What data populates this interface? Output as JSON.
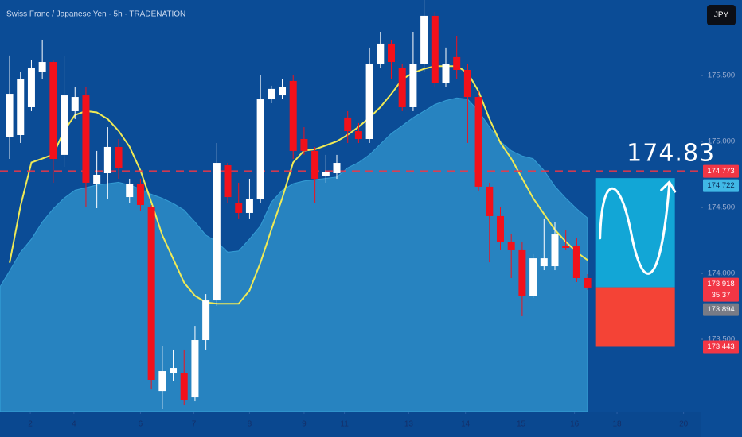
{
  "title": "Swiss Franc / Japanese Yen · 5h · TRADENATION",
  "currency_button": "JPY",
  "chart_data": {
    "type": "candlestick",
    "x": [
      0,
      1,
      2,
      3,
      4,
      5,
      6,
      7,
      8,
      9,
      10,
      11,
      12,
      13,
      14,
      15,
      16,
      17,
      18,
      19,
      20,
      21,
      22,
      23,
      24,
      25,
      26,
      27,
      28,
      29,
      30,
      31,
      32,
      33,
      34,
      35,
      36,
      37,
      38,
      39,
      40,
      41,
      42,
      43,
      44,
      45,
      46,
      47,
      48,
      49,
      50,
      51,
      52,
      53
    ],
    "open": [
      175.036,
      175.048,
      175.259,
      175.53,
      175.602,
      174.898,
      175.229,
      175.349,
      174.675,
      174.759,
      174.958,
      174.578,
      174.675,
      174.506,
      173.108,
      173.241,
      173.241,
      173.06,
      173.494,
      173.795,
      174.819,
      174.536,
      174.458,
      174.566,
      175.319,
      175.349,
      175.458,
      175.018,
      174.928,
      174.735,
      174.759,
      175.181,
      175.078,
      175.018,
      175.59,
      175.741,
      175.56,
      175.259,
      175.59,
      175.952,
      175.44,
      175.639,
      175.542,
      175.337,
      174.657,
      174.434,
      174.235,
      174.175,
      173.831,
      174.054,
      174.054,
      174.205,
      174.205,
      173.964
    ],
    "high": [
      175.651,
      175.53,
      175.62,
      175.771,
      175.62,
      175.651,
      175.41,
      175.41,
      174.928,
      175.108,
      175.018,
      174.717,
      174.717,
      174.518,
      173.452,
      173.422,
      173.422,
      173.602,
      173.843,
      174.988,
      174.837,
      174.687,
      174.717,
      175.5,
      175.422,
      175.47,
      175.5,
      175.108,
      174.958,
      174.898,
      174.898,
      175.229,
      175.139,
      175.711,
      175.831,
      175.771,
      175.59,
      175.831,
      176.072,
      175.982,
      175.711,
      175.801,
      175.59,
      175.38,
      174.687,
      174.506,
      174.295,
      174.235,
      174.145,
      174.416,
      174.386,
      174.325,
      174.265,
      173.994
    ],
    "low": [
      174.867,
      174.988,
      175.229,
      175.47,
      174.687,
      174.807,
      175.169,
      174.506,
      174.494,
      174.566,
      174.717,
      174.536,
      174.476,
      173.12,
      172.97,
      173.181,
      173.0,
      173.03,
      173.422,
      173.753,
      174.536,
      174.416,
      174.416,
      174.536,
      175.289,
      175.319,
      174.867,
      174.898,
      174.536,
      174.687,
      174.717,
      174.988,
      174.988,
      174.988,
      175.56,
      175.47,
      175.229,
      175.229,
      175.53,
      175.41,
      175.41,
      175.47,
      174.988,
      174.627,
      174.084,
      174.175,
      173.964,
      173.675,
      173.813,
      174.024,
      174.024,
      174.175,
      173.934,
      173.874
    ],
    "close": [
      175.361,
      175.47,
      175.56,
      175.602,
      174.867,
      175.349,
      175.337,
      174.687,
      174.747,
      174.958,
      174.795,
      174.675,
      174.518,
      173.193,
      173.259,
      173.283,
      173.042,
      173.494,
      173.795,
      174.837,
      174.578,
      174.458,
      174.566,
      175.319,
      175.398,
      175.41,
      174.928,
      174.928,
      174.717,
      174.771,
      174.837,
      175.078,
      175.018,
      175.59,
      175.741,
      175.602,
      175.259,
      175.59,
      175.952,
      175.44,
      175.59,
      175.542,
      175.337,
      174.657,
      174.434,
      174.235,
      174.175,
      173.831,
      174.114,
      174.114,
      174.295,
      174.193,
      173.964,
      173.892
    ],
    "up_color": "#ffffff",
    "down_color": "#f2111b",
    "overlays": [
      {
        "type": "area",
        "color": "#3fb0e4",
        "values": [
          174.02,
          174.16,
          174.26,
          174.39,
          174.49,
          174.57,
          174.63,
          174.65,
          174.67,
          174.68,
          174.69,
          174.67,
          174.64,
          174.6,
          174.57,
          174.53,
          174.48,
          174.39,
          174.29,
          174.24,
          174.16,
          174.17,
          174.26,
          174.36,
          174.54,
          174.63,
          174.68,
          174.7,
          174.71,
          174.72,
          174.73,
          174.8,
          174.84,
          174.9,
          174.98,
          175.06,
          175.12,
          175.18,
          175.23,
          175.28,
          175.31,
          175.33,
          175.32,
          175.23,
          175.11,
          175.0,
          174.93,
          174.89,
          174.87,
          174.78,
          174.66,
          174.57,
          174.49,
          174.42
        ]
      },
      {
        "type": "line",
        "color": "#f0ea55",
        "values": [
          174.08,
          174.51,
          174.84,
          174.87,
          174.9,
          175.08,
          175.2,
          175.23,
          175.22,
          175.17,
          175.08,
          174.96,
          174.78,
          174.54,
          174.29,
          174.11,
          173.93,
          173.83,
          173.78,
          173.77,
          173.77,
          173.77,
          173.87,
          174.08,
          174.33,
          174.57,
          174.84,
          174.93,
          174.94,
          174.97,
          175.0,
          175.05,
          175.11,
          175.18,
          175.26,
          175.36,
          175.47,
          175.52,
          175.55,
          175.57,
          175.57,
          175.57,
          175.52,
          175.38,
          175.17,
          174.99,
          174.87,
          174.72,
          174.57,
          174.45,
          174.33,
          174.24,
          174.16,
          174.1
        ]
      }
    ],
    "xlim": [
      -0.88,
      63.36
    ],
    "ylim": [
      172.952,
      176.072
    ],
    "xticks": [
      {
        "value": 1.9,
        "label": "2"
      },
      {
        "value": 5.9,
        "label": "4"
      },
      {
        "value": 12.0,
        "label": "6"
      },
      {
        "value": 16.9,
        "label": "7"
      },
      {
        "value": 22.0,
        "label": "8"
      },
      {
        "value": 27.0,
        "label": "9"
      },
      {
        "value": 30.7,
        "label": "11"
      },
      {
        "value": 36.6,
        "label": "13"
      },
      {
        "value": 41.8,
        "label": "14"
      },
      {
        "value": 46.9,
        "label": "15"
      },
      {
        "value": 51.8,
        "label": "16"
      },
      {
        "value": 55.7,
        "label": "18"
      },
      {
        "value": 61.8,
        "label": "20"
      }
    ],
    "yticks": [
      {
        "value": 175.5,
        "label": "175.500"
      },
      {
        "value": 175.0,
        "label": "175.000"
      },
      {
        "value": 174.5,
        "label": "174.500"
      },
      {
        "value": 174.0,
        "label": "174.000"
      },
      {
        "value": 173.5,
        "label": "173.500"
      }
    ],
    "price_labels": [
      {
        "value": 174.773,
        "color": "#f23645"
      },
      {
        "value": 174.722,
        "color": "#40b8e6"
      },
      {
        "value": 173.918,
        "color": "#f23645",
        "countdown": "35:37"
      },
      {
        "value": 173.894,
        "color": "#787b86"
      },
      {
        "value": 173.443,
        "color": "#f23645"
      }
    ],
    "position": {
      "x_start": 53.7,
      "x_end": 61.0,
      "target_color": "#12a6d6",
      "stop_color": "#f44336"
    },
    "target_label": 174.83
  }
}
